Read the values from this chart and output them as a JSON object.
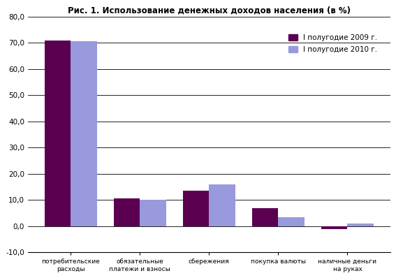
{
  "title": "Рис. 1. Использование денежных доходов населения (в %)",
  "categories": [
    "потребительские\nрасходы",
    "обязательные\nплатежи и взносы",
    "сбережения",
    "покупка валюты",
    "наличные деньги\nна руках"
  ],
  "series": [
    {
      "label": "I полугодие 2009 г.",
      "values": [
        71.0,
        10.5,
        13.5,
        7.0,
        -1.0
      ],
      "color": "#5B0050"
    },
    {
      "label": "I полугодие 2010 г.",
      "values": [
        70.5,
        10.0,
        16.0,
        3.5,
        1.0
      ],
      "color": "#9999DD"
    }
  ],
  "ylim": [
    -10.0,
    80.0
  ],
  "yticks": [
    -10.0,
    0.0,
    10.0,
    20.0,
    30.0,
    40.0,
    50.0,
    60.0,
    70.0,
    80.0
  ],
  "ytick_labels": [
    "-10,0",
    "0,0",
    "10,0",
    "20,0",
    "30,0",
    "40,0",
    "50,0",
    "60,0",
    "70,0",
    "80,0"
  ],
  "background_color": "#FFFFFF",
  "grid_color": "#000000",
  "bar_width": 0.38
}
